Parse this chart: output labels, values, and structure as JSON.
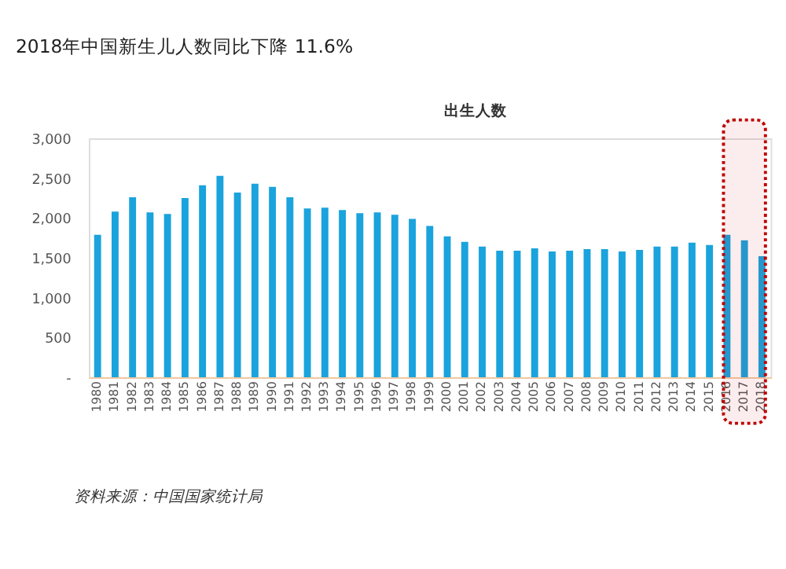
{
  "chart_data": {
    "type": "bar",
    "title": "2018年中国新生儿人数同比下降 11.6%",
    "subtitle": "出生人数",
    "categories": [
      "1980",
      "1981",
      "1982",
      "1983",
      "1984",
      "1985",
      "1986",
      "1987",
      "1988",
      "1989",
      "1990",
      "1991",
      "1992",
      "1993",
      "1994",
      "1995",
      "1996",
      "1997",
      "1998",
      "1999",
      "2000",
      "2001",
      "2002",
      "2003",
      "2004",
      "2005",
      "2006",
      "2007",
      "2008",
      "2009",
      "2010",
      "2011",
      "2012",
      "2013",
      "2014",
      "2015",
      "2016",
      "2017",
      "2018"
    ],
    "values": [
      1790,
      2080,
      2260,
      2070,
      2050,
      2250,
      2410,
      2530,
      2320,
      2430,
      2390,
      2260,
      2120,
      2130,
      2100,
      2060,
      2070,
      2040,
      1990,
      1900,
      1770,
      1700,
      1640,
      1590,
      1590,
      1620,
      1580,
      1590,
      1610,
      1610,
      1580,
      1600,
      1640,
      1640,
      1690,
      1660,
      1790,
      1720,
      1520
    ],
    "color": "#1aa3dc",
    "ylim": [
      0,
      3000
    ],
    "yticks": [
      {
        "value": 0,
        "label": "-"
      },
      {
        "value": 500,
        "label": "500"
      },
      {
        "value": 1000,
        "label": "1,000"
      },
      {
        "value": 1500,
        "label": "1,500"
      },
      {
        "value": 2000,
        "label": "2,000"
      },
      {
        "value": 2500,
        "label": "2,500"
      },
      {
        "value": 3000,
        "label": "3,000"
      }
    ],
    "grid": false,
    "bands": [
      {
        "axis": "x",
        "from": "2016",
        "to": "2018",
        "color": "#c00000"
      }
    ],
    "annotations": [
      "资料来源：中国国家统计局"
    ]
  }
}
